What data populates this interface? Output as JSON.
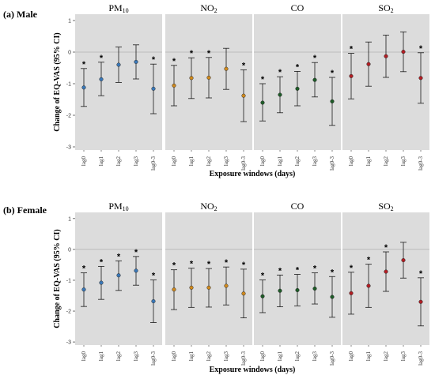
{
  "categories": [
    "lag0",
    "lag1",
    "lag2",
    "lag3",
    "lag0-3"
  ],
  "facets": [
    "PM10",
    "NO2",
    "CO",
    "SO2"
  ],
  "colors": {
    "PM10": "#3a78b8",
    "NO2": "#d08a1e",
    "CO": "#1e5c28",
    "SO2": "#b21e24"
  },
  "ylabel": "Change of EQ-VAS (95% CI)",
  "xlabel": "Exposure windows (days)",
  "y_ticks": [
    "1",
    "0",
    "-1",
    "-2",
    "-3"
  ],
  "star_text": "*",
  "chart_data": [
    {
      "type": "scatter",
      "title": "(a) Male",
      "ylim": [
        -3.1,
        1.2
      ],
      "panels": [
        {
          "facet": "PM10",
          "points": [
            {
              "cat": "lag0",
              "y": -1.12,
              "lo": -1.72,
              "hi": -0.52,
              "sig": true
            },
            {
              "cat": "lag1",
              "y": -0.86,
              "lo": -1.38,
              "hi": -0.32,
              "sig": true
            },
            {
              "cat": "lag2",
              "y": -0.4,
              "lo": -0.96,
              "hi": 0.16,
              "sig": false
            },
            {
              "cat": "lag3",
              "y": -0.31,
              "lo": -0.85,
              "hi": 0.23,
              "sig": false
            },
            {
              "cat": "lag0-3",
              "y": -1.16,
              "lo": -1.95,
              "hi": -0.38,
              "sig": true
            }
          ]
        },
        {
          "facet": "NO2",
          "points": [
            {
              "cat": "lag0",
              "y": -1.06,
              "lo": -1.7,
              "hi": -0.42,
              "sig": true
            },
            {
              "cat": "lag1",
              "y": -0.82,
              "lo": -1.47,
              "hi": -0.18,
              "sig": true
            },
            {
              "cat": "lag2",
              "y": -0.81,
              "lo": -1.45,
              "hi": -0.17,
              "sig": true
            },
            {
              "cat": "lag3",
              "y": -0.53,
              "lo": -1.18,
              "hi": 0.12,
              "sig": false
            },
            {
              "cat": "lag0-3",
              "y": -1.38,
              "lo": -2.2,
              "hi": -0.56,
              "sig": true
            }
          ]
        },
        {
          "facet": "CO",
          "points": [
            {
              "cat": "lag0",
              "y": -1.6,
              "lo": -2.18,
              "hi": -1.0,
              "sig": true
            },
            {
              "cat": "lag1",
              "y": -1.35,
              "lo": -1.92,
              "hi": -0.78,
              "sig": true
            },
            {
              "cat": "lag2",
              "y": -1.16,
              "lo": -1.7,
              "hi": -0.61,
              "sig": true
            },
            {
              "cat": "lag3",
              "y": -0.88,
              "lo": -1.42,
              "hi": -0.33,
              "sig": true
            },
            {
              "cat": "lag0-3",
              "y": -1.56,
              "lo": -2.32,
              "hi": -0.8,
              "sig": true
            }
          ]
        },
        {
          "facet": "SO2",
          "points": [
            {
              "cat": "lag0",
              "y": -0.76,
              "lo": -1.48,
              "hi": -0.04,
              "sig": true
            },
            {
              "cat": "lag1",
              "y": -0.38,
              "lo": -1.08,
              "hi": 0.32,
              "sig": false
            },
            {
              "cat": "lag2",
              "y": -0.13,
              "lo": -0.8,
              "hi": 0.54,
              "sig": false
            },
            {
              "cat": "lag3",
              "y": 0.01,
              "lo": -0.62,
              "hi": 0.64,
              "sig": false
            },
            {
              "cat": "lag0-3",
              "y": -0.82,
              "lo": -1.62,
              "hi": -0.02,
              "sig": true
            }
          ]
        }
      ]
    },
    {
      "type": "scatter",
      "title": "(b) Female",
      "ylim": [
        -3.1,
        1.2
      ],
      "panels": [
        {
          "facet": "PM10",
          "points": [
            {
              "cat": "lag0",
              "y": -1.3,
              "lo": -1.85,
              "hi": -0.76,
              "sig": true
            },
            {
              "cat": "lag1",
              "y": -1.08,
              "lo": -1.62,
              "hi": -0.55,
              "sig": true
            },
            {
              "cat": "lag2",
              "y": -0.84,
              "lo": -1.33,
              "hi": -0.37,
              "sig": true
            },
            {
              "cat": "lag3",
              "y": -0.69,
              "lo": -1.16,
              "hi": -0.23,
              "sig": true
            },
            {
              "cat": "lag0-3",
              "y": -1.68,
              "lo": -2.37,
              "hi": -0.99,
              "sig": true
            }
          ]
        },
        {
          "facet": "NO2",
          "points": [
            {
              "cat": "lag0",
              "y": -1.3,
              "lo": -1.95,
              "hi": -0.66,
              "sig": true
            },
            {
              "cat": "lag1",
              "y": -1.24,
              "lo": -1.88,
              "hi": -0.61,
              "sig": true
            },
            {
              "cat": "lag2",
              "y": -1.24,
              "lo": -1.87,
              "hi": -0.62,
              "sig": true
            },
            {
              "cat": "lag3",
              "y": -1.18,
              "lo": -1.8,
              "hi": -0.57,
              "sig": true
            },
            {
              "cat": "lag0-3",
              "y": -1.43,
              "lo": -2.22,
              "hi": -0.64,
              "sig": true
            }
          ]
        },
        {
          "facet": "CO",
          "points": [
            {
              "cat": "lag0",
              "y": -1.52,
              "lo": -2.05,
              "hi": -0.99,
              "sig": true
            },
            {
              "cat": "lag1",
              "y": -1.34,
              "lo": -1.86,
              "hi": -0.83,
              "sig": true
            },
            {
              "cat": "lag2",
              "y": -1.32,
              "lo": -1.83,
              "hi": -0.81,
              "sig": true
            },
            {
              "cat": "lag3",
              "y": -1.27,
              "lo": -1.77,
              "hi": -0.76,
              "sig": true
            },
            {
              "cat": "lag0-3",
              "y": -1.54,
              "lo": -2.2,
              "hi": -0.88,
              "sig": true
            }
          ]
        },
        {
          "facet": "SO2",
          "points": [
            {
              "cat": "lag0",
              "y": -1.42,
              "lo": -2.1,
              "hi": -0.74,
              "sig": true
            },
            {
              "cat": "lag1",
              "y": -1.18,
              "lo": -1.88,
              "hi": -0.48,
              "sig": true
            },
            {
              "cat": "lag2",
              "y": -0.72,
              "lo": -1.36,
              "hi": -0.08,
              "sig": true
            },
            {
              "cat": "lag3",
              "y": -0.35,
              "lo": -0.93,
              "hi": 0.23,
              "sig": false
            },
            {
              "cat": "lag0-3",
              "y": -1.7,
              "lo": -2.48,
              "hi": -0.92,
              "sig": true
            }
          ]
        }
      ]
    }
  ]
}
